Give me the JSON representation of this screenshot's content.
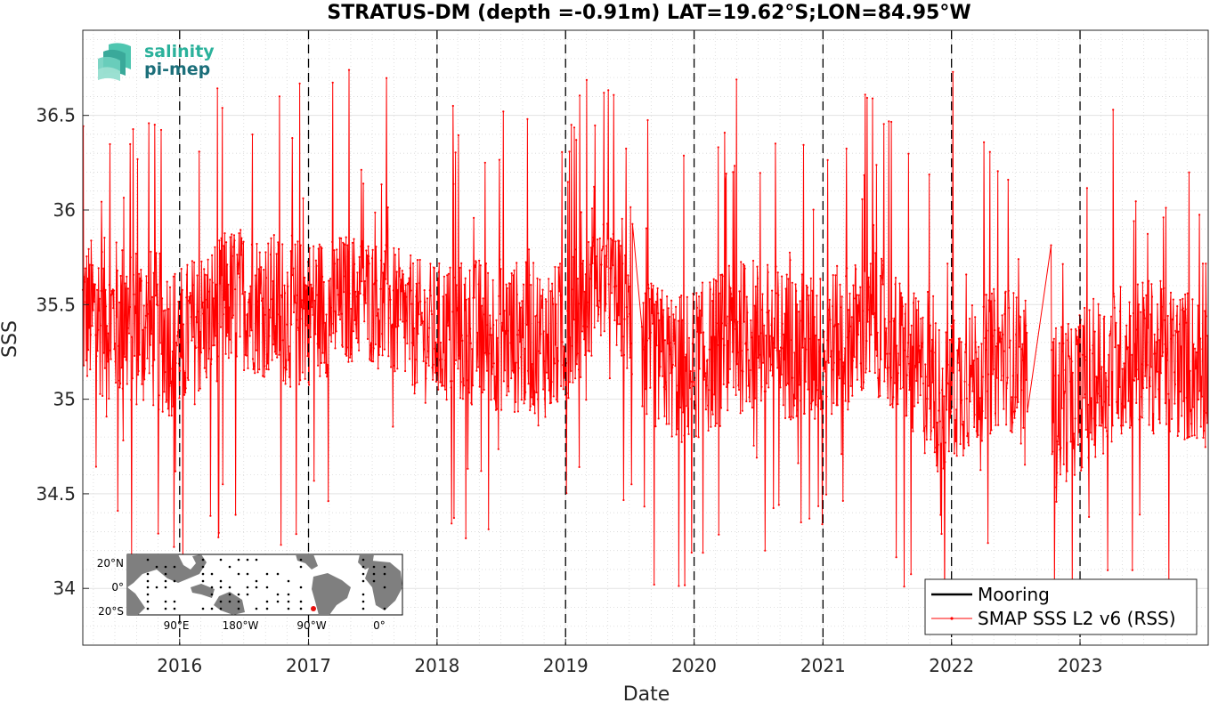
{
  "chart_data": {
    "type": "line",
    "title": "STRATUS-DM (depth =-0.91m) LAT=19.62°S;LON=84.95°W",
    "xlabel": "Date",
    "ylabel": "SSS",
    "xlim": [
      "2015-04-01",
      "2023-12-31"
    ],
    "ylim": [
      33.7,
      36.95
    ],
    "x_ticks": [
      "2016",
      "2017",
      "2018",
      "2019",
      "2020",
      "2021",
      "2022",
      "2023"
    ],
    "y_ticks": [
      "34",
      "34.5",
      "35",
      "35.5",
      "36",
      "36.5"
    ],
    "grid": true,
    "year_markers": [
      "2016-01-01",
      "2017-01-01",
      "2018-01-01",
      "2019-01-01",
      "2020-01-01",
      "2021-01-01",
      "2022-01-01",
      "2023-01-01"
    ],
    "legend_position": "bottom-right",
    "series": [
      {
        "name": "Mooring",
        "color": "#000000",
        "values": []
      },
      {
        "name": "SMAP SSS L2 v6 (RSS)",
        "color": "#ff0000",
        "gaps": [
          [
            "2019-07-10",
            "2019-08-05"
          ],
          [
            "2022-08-05",
            "2022-10-10"
          ]
        ],
        "envelope": [
          {
            "x": "2015-04-01",
            "mean": 35.45,
            "spread": 0.55
          },
          {
            "x": "2015-09-01",
            "mean": 35.4,
            "spread": 0.6
          },
          {
            "x": "2016-01-01",
            "mean": 35.3,
            "spread": 0.55
          },
          {
            "x": "2016-06-01",
            "mean": 35.55,
            "spread": 0.5
          },
          {
            "x": "2016-12-01",
            "mean": 35.45,
            "spread": 0.55
          },
          {
            "x": "2017-06-01",
            "mean": 35.55,
            "spread": 0.45
          },
          {
            "x": "2017-12-01",
            "mean": 35.35,
            "spread": 0.5
          },
          {
            "x": "2018-06-01",
            "mean": 35.35,
            "spread": 0.55
          },
          {
            "x": "2018-12-01",
            "mean": 35.3,
            "spread": 0.55
          },
          {
            "x": "2019-05-01",
            "mean": 35.65,
            "spread": 0.4
          },
          {
            "x": "2019-08-15",
            "mean": 35.25,
            "spread": 0.5
          },
          {
            "x": "2019-12-01",
            "mean": 35.15,
            "spread": 0.55
          },
          {
            "x": "2020-06-01",
            "mean": 35.35,
            "spread": 0.55
          },
          {
            "x": "2020-12-01",
            "mean": 35.25,
            "spread": 0.55
          },
          {
            "x": "2021-06-01",
            "mean": 35.4,
            "spread": 0.5
          },
          {
            "x": "2021-12-01",
            "mean": 35.0,
            "spread": 0.55
          },
          {
            "x": "2022-06-01",
            "mean": 35.25,
            "spread": 0.5
          },
          {
            "x": "2022-10-15",
            "mean": 34.95,
            "spread": 0.6
          },
          {
            "x": "2023-06-01",
            "mean": 35.25,
            "spread": 0.55
          },
          {
            "x": "2023-12-31",
            "mean": 35.15,
            "spread": 0.55
          }
        ],
        "spikes": [
          {
            "x": "2015-07-10",
            "y": 34.41
          },
          {
            "x": "2015-11-01",
            "y": 34.29
          },
          {
            "x": "2016-04-20",
            "y": 34.27
          },
          {
            "x": "2016-05-01",
            "y": 36.54
          },
          {
            "x": "2016-10-15",
            "y": 34.23
          },
          {
            "x": "2018-02-15",
            "y": 36.55
          },
          {
            "x": "2019-04-20",
            "y": 36.62
          },
          {
            "x": "2019-09-10",
            "y": 34.02
          },
          {
            "x": "2020-05-01",
            "y": 36.69
          },
          {
            "x": "2020-07-20",
            "y": 34.2
          },
          {
            "x": "2021-05-01",
            "y": 36.61
          },
          {
            "x": "2021-08-20",
            "y": 34.01
          },
          {
            "x": "2022-01-05",
            "y": 36.73
          },
          {
            "x": "2022-04-15",
            "y": 34.24
          },
          {
            "x": "2022-10-20",
            "y": 33.98
          },
          {
            "x": "2023-04-05",
            "y": 36.53
          },
          {
            "x": "2023-06-20",
            "y": 34.39
          },
          {
            "x": "2023-09-10",
            "y": 33.98
          }
        ]
      }
    ]
  },
  "logo": {
    "line1": "salinity",
    "line2": "pi-mep"
  },
  "inset_map": {
    "lat_labels": [
      "20°N",
      "0°",
      "20°S"
    ],
    "lon_labels": [
      "90°E",
      "180°W",
      "90°W",
      "0°"
    ],
    "land_color": "#7f7f7f",
    "marker_color": "#e8100e"
  }
}
